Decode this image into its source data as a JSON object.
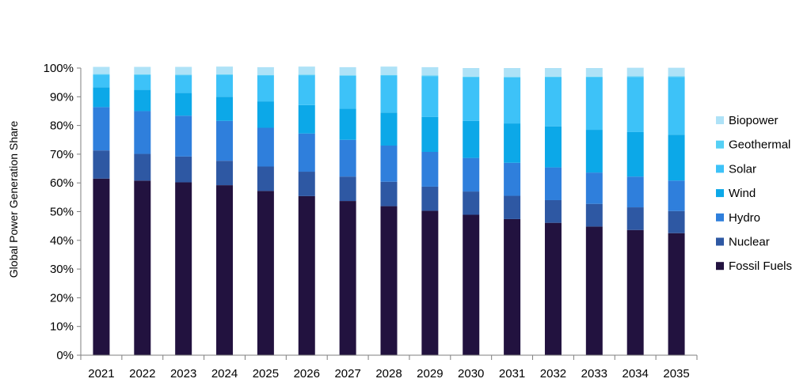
{
  "chart_data": {
    "type": "bar",
    "stacked": true,
    "title": "",
    "xlabel": "",
    "ylabel": "Global Power Generation Share",
    "ylim": [
      0,
      100
    ],
    "ytick_labels": [
      "0%",
      "10%",
      "20%",
      "30%",
      "40%",
      "50%",
      "60%",
      "70%",
      "80%",
      "90%",
      "100%"
    ],
    "categories": [
      "2021",
      "2022",
      "2023",
      "2024",
      "2025",
      "2026",
      "2027",
      "2028",
      "2029",
      "2030",
      "2031",
      "2032",
      "2033",
      "2034",
      "2035"
    ],
    "legend_position": "right",
    "grid": false,
    "series": [
      {
        "name": "Fossil Fuels",
        "color": "#22123f",
        "values": [
          61.5,
          60.8,
          60.2,
          59.2,
          57.2,
          55.4,
          53.7,
          51.9,
          50.3,
          48.9,
          47.4,
          46.1,
          44.8,
          43.6,
          42.5
        ]
      },
      {
        "name": "Nuclear",
        "color": "#2e58a3",
        "values": [
          9.8,
          9.3,
          9.0,
          8.5,
          8.5,
          8.5,
          8.5,
          8.5,
          8.4,
          8.1,
          8.1,
          7.9,
          7.9,
          7.9,
          7.7
        ]
      },
      {
        "name": "Hydro",
        "color": "#2f7fdc",
        "values": [
          15.1,
          14.9,
          14.2,
          13.9,
          13.5,
          13.3,
          12.8,
          12.6,
          12.1,
          11.7,
          11.5,
          11.4,
          10.9,
          10.7,
          10.6
        ]
      },
      {
        "name": "Wind",
        "color": "#0ca8e8",
        "values": [
          6.9,
          7.4,
          7.9,
          8.4,
          9.2,
          9.9,
          10.8,
          11.5,
          12.2,
          12.9,
          13.7,
          14.3,
          14.9,
          15.5,
          16.0
        ]
      },
      {
        "name": "Solar",
        "color": "#3dc2f8",
        "values": [
          4.4,
          5.2,
          6.2,
          7.6,
          9.0,
          10.4,
          11.5,
          12.9,
          14.2,
          15.2,
          16.0,
          17.1,
          18.3,
          19.2,
          20.1
        ]
      },
      {
        "name": "Geothermal",
        "color": "#55d0f5",
        "values": [
          0.2,
          0.2,
          0.2,
          0.2,
          0.2,
          0.2,
          0.2,
          0.2,
          0.2,
          0.2,
          0.2,
          0.2,
          0.2,
          0.2,
          0.2
        ]
      },
      {
        "name": "Biopower",
        "color": "#aee2f7",
        "values": [
          2.5,
          2.6,
          2.7,
          2.7,
          2.7,
          2.8,
          2.8,
          2.9,
          2.9,
          3.0,
          3.1,
          3.0,
          3.0,
          3.0,
          3.0
        ]
      }
    ]
  }
}
